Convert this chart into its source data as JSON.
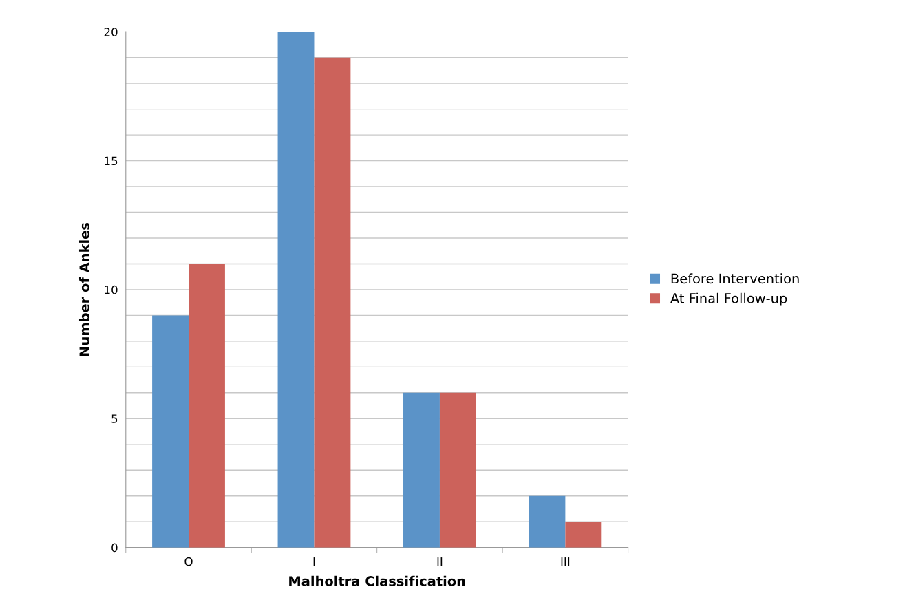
{
  "chart_data": {
    "type": "bar",
    "xlabel": "Malholtra Classification",
    "ylabel": "Number of Ankles",
    "categories": [
      "O",
      "I",
      "II",
      "III"
    ],
    "series": [
      {
        "name": "Before Intervention",
        "color": "#5b93c8",
        "values": [
          9,
          20,
          6,
          2
        ]
      },
      {
        "name": "At Final Follow-up",
        "color": "#cc625b",
        "values": [
          11,
          19,
          6,
          1
        ]
      }
    ],
    "ylim": [
      0,
      20
    ],
    "yticks": [
      0,
      {
        "value": 1,
        "label": null
      },
      {
        "value": 2,
        "label": null
      },
      {
        "value": 3,
        "label": null
      },
      {
        "value": 4,
        "label": null
      },
      5,
      {
        "value": 6,
        "label": null
      },
      {
        "value": 7,
        "label": null
      },
      {
        "value": 8,
        "label": null
      },
      {
        "value": 9,
        "label": null
      },
      10,
      {
        "value": 11,
        "label": null
      },
      {
        "value": 12,
        "label": null
      },
      {
        "value": 13,
        "label": null
      },
      {
        "value": 14,
        "label": null
      },
      15,
      {
        "value": 16,
        "label": null
      },
      {
        "value": 17,
        "label": null
      },
      {
        "value": 18,
        "label": null
      },
      {
        "value": 19,
        "label": null
      },
      20
    ],
    "grid": "y",
    "legend": "right"
  }
}
